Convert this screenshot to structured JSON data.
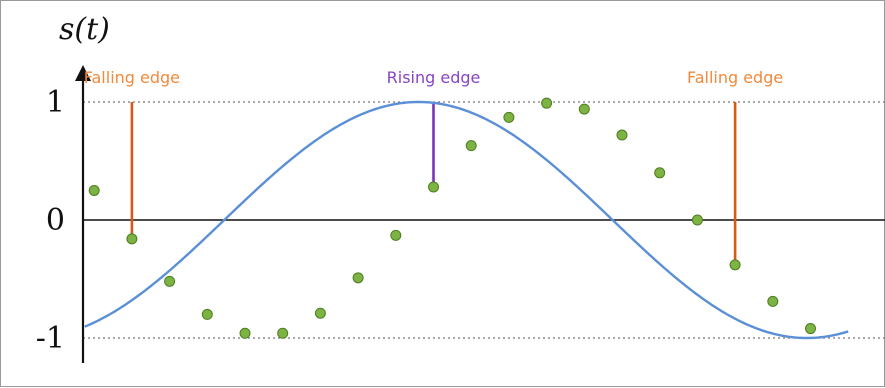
{
  "chart_data": {
    "type": "line",
    "ylabel": "s(t)",
    "ylim": [
      -1,
      1
    ],
    "yticks": [
      {
        "value": 1,
        "label": "1"
      },
      {
        "value": 0,
        "label": "0"
      },
      {
        "value": -1,
        "label": "-1"
      }
    ],
    "curve": {
      "color": "#5b8fd6",
      "amplitude": 1,
      "period": 20.6,
      "phase": 4.45,
      "x_range": [
        0,
        21
      ]
    },
    "samples": {
      "color": "#7cb342",
      "x": [
        1,
        2,
        3,
        4,
        5,
        6,
        7,
        8,
        9,
        10,
        11,
        12,
        13,
        14,
        15,
        16,
        17,
        18,
        19,
        20
      ],
      "y": [
        0.25,
        -0.16,
        -0.52,
        -0.8,
        -0.96,
        -0.96,
        -0.79,
        -0.49,
        -0.13,
        0.28,
        0.63,
        0.87,
        0.99,
        0.94,
        0.72,
        0.4,
        0.0,
        -0.38,
        -0.69,
        -0.92
      ]
    },
    "annotations": [
      {
        "label": "Falling edge",
        "x": 2,
        "y": -0.16,
        "color": "#f08a3c",
        "line_color": "#d55a18"
      },
      {
        "label": "Rising edge",
        "x": 10,
        "y": 0.28,
        "color": "#8a44c4",
        "line_color": "#7a35b8"
      },
      {
        "label": "Falling edge",
        "x": 18,
        "y": -0.38,
        "color": "#f08a3c",
        "line_color": "#d55a18"
      }
    ],
    "grid": false,
    "reference_lines": [
      1,
      -1
    ]
  }
}
